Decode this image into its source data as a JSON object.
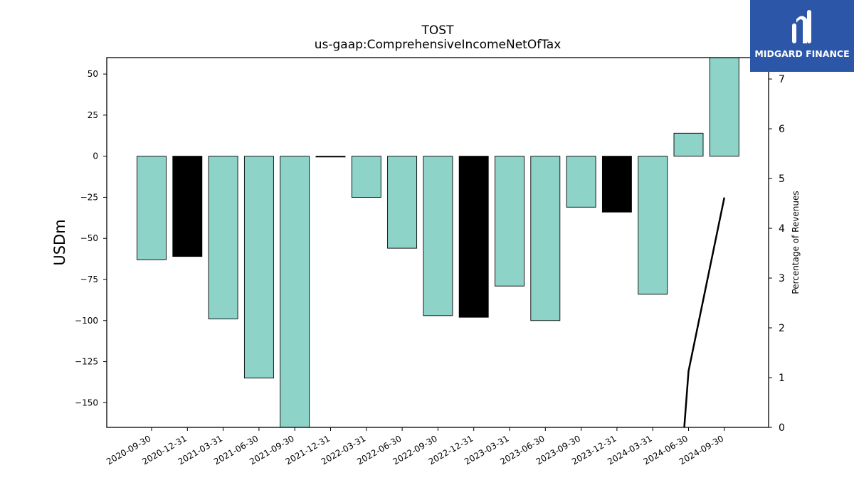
{
  "chart_data": {
    "type": "bar",
    "title": "TOST",
    "subtitle": "us-gaap:ComprehensiveIncomeNetOfTax",
    "ylabel": "USDm",
    "y2label": "Percentage of Revenues",
    "categories": [
      "2020-09-30",
      "2020-12-31",
      "2021-03-31",
      "2021-06-30",
      "2021-09-30",
      "2021-12-31",
      "2022-03-31",
      "2022-06-30",
      "2022-09-30",
      "2022-12-31",
      "2023-03-31",
      "2023-06-30",
      "2023-09-30",
      "2023-12-31",
      "2024-03-31",
      "2024-06-30",
      "2024-09-30"
    ],
    "values": [
      -63,
      -61,
      -99,
      -135,
      -166,
      -0.5,
      -25,
      -56,
      -97,
      -98,
      -79,
      -100,
      -31,
      -34,
      -84,
      14,
      61
    ],
    "bar_colors": [
      "#8dd3c7",
      "#000000",
      "#8dd3c7",
      "#8dd3c7",
      "#8dd3c7",
      "#000000",
      "#8dd3c7",
      "#8dd3c7",
      "#8dd3c7",
      "#000000",
      "#8dd3c7",
      "#8dd3c7",
      "#8dd3c7",
      "#000000",
      "#8dd3c7",
      "#8dd3c7",
      "#8dd3c7"
    ],
    "ylim": [
      -165,
      60
    ],
    "yticks": [
      50,
      25,
      0,
      -25,
      -50,
      -75,
      -100,
      -125,
      -150
    ],
    "ytick_labels": [
      "50",
      "25",
      "0",
      "−25",
      "−50",
      "−75",
      "−100",
      "−125",
      "−150"
    ],
    "y2lim": [
      0,
      7.43
    ],
    "y2ticks": [
      0,
      1,
      2,
      3,
      4,
      5,
      6,
      7
    ],
    "line_series": {
      "x": [
        "2024-06-30",
        "2024-06-30",
        "2024-09-30"
      ],
      "x_offset": [
        -0.12,
        0,
        0
      ],
      "values": [
        0,
        1.13,
        4.62
      ]
    },
    "grid": false
  },
  "logo": {
    "text": "MIDGARD FINANCE"
  }
}
